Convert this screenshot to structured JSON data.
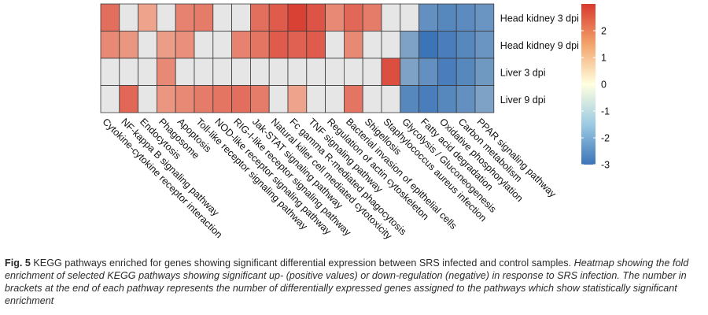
{
  "chart_data": {
    "type": "heatmap",
    "columns": [
      "Cytokine-cytokine receptor interaction",
      "NF-kappa B signaling pathway",
      "Endocytosis",
      "Phagosome",
      "Apoptosis",
      "Toll-like receptor signaling pathway",
      "NOD-like receptor signaling pathway",
      "RIG-I-like receptor signaling pathway",
      "Jak-STAT signaling pathway",
      "Natural killer cell mediated cytotoxicity",
      "Fc gamma R-mediated phagocytosis",
      "TNF signaling pathway",
      "Regulation of actin cytoskeleton",
      "Bacterial invasion of epithelial cells",
      "Shigellosis",
      "Staphylococcus aureus infection",
      "Glycolysis / Gluconeogenesis",
      "Fatty acid degradation",
      "Oxidative phosphorylation",
      "Carbon metabolism",
      "PPAR signaling pathway"
    ],
    "rows": [
      "Head kidney 3 dpi",
      "Head kidney 9 dpi",
      "Liver 3 dpi",
      "Liver 9 dpi"
    ],
    "values": [
      [
        2.2,
        0,
        1.4,
        0,
        1.9,
        2.0,
        0,
        0,
        2.2,
        2.5,
        2.9,
        2.6,
        1.8,
        2.3,
        2.0,
        0,
        0,
        -2.4,
        -2.6,
        -2.5,
        -2.3
      ],
      [
        1.8,
        1.6,
        0,
        1.5,
        1.7,
        0,
        0,
        1.9,
        2.1,
        2.5,
        2.4,
        2.5,
        0,
        1.8,
        0,
        0,
        -2.0,
        -3.2,
        -2.8,
        -2.6,
        -2.3
      ],
      [
        0,
        0,
        0,
        1.8,
        0,
        0,
        0,
        0,
        0,
        0,
        0,
        0,
        0,
        0,
        0,
        2.7,
        -2.0,
        -2.4,
        -2.8,
        -2.6,
        -2.2
      ],
      [
        0,
        2.3,
        0,
        1.6,
        1.8,
        2.0,
        2.1,
        2.2,
        2.0,
        0,
        1.4,
        0,
        0,
        2.1,
        0,
        0,
        -2.6,
        -2.8,
        -2.6,
        -2.4,
        -2.0
      ]
    ],
    "scale": {
      "min": -3,
      "max": 3,
      "ticks": [
        2,
        1,
        0,
        -1,
        -2,
        -3
      ]
    },
    "colors": {
      "low": "#3c74b8",
      "mid": "#ffffdf",
      "high": "#d83a2e",
      "empty": "#e6e6e6",
      "grid": "#3a3a3a"
    },
    "legend_placement": "right"
  },
  "caption": {
    "fig_label": "Fig. 5",
    "title": "KEGG pathways enriched for genes showing significant differential expression between SRS infected and control samples.",
    "description": "Heatmap showing the fold enrichment of selected KEGG pathways showing significant up- (positive values) or down-regulation (negative) in response to SRS infection. The number in brackets at the end of each pathway represents the number of differentially expressed genes assigned to the pathways which show statistically significant enrichment"
  }
}
